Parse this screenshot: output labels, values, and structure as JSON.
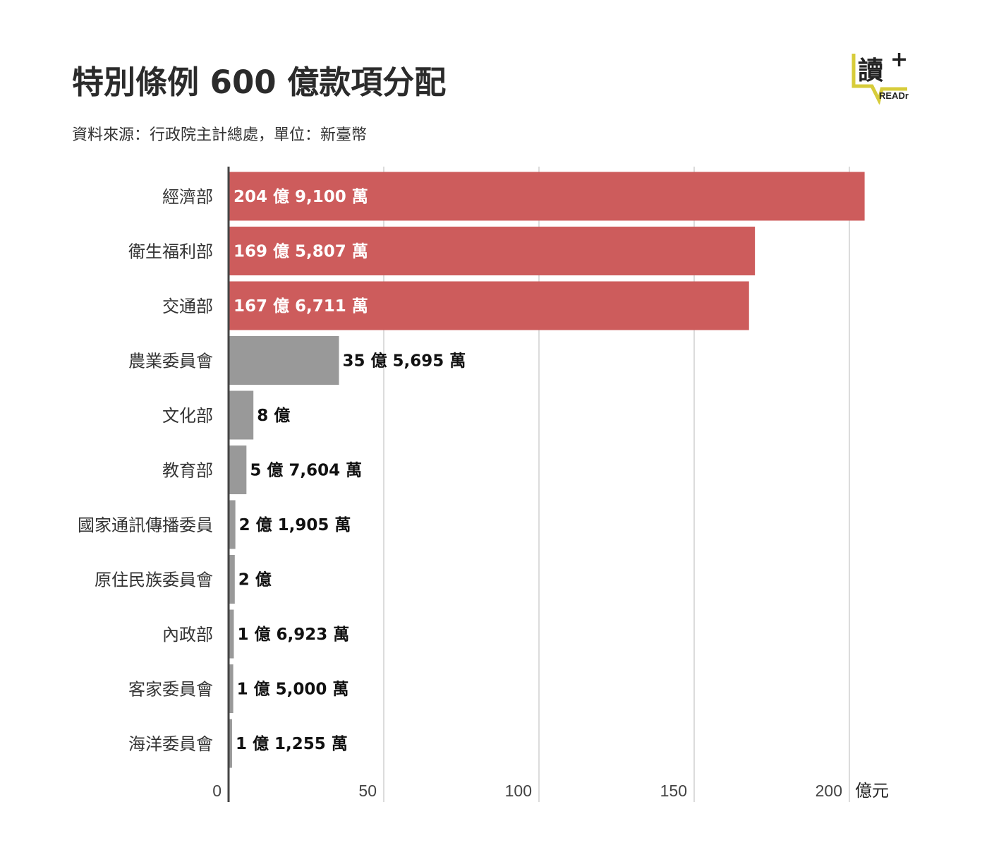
{
  "header": {
    "title": "特別條例 600 億款項分配",
    "subtitle": "資料來源：行政院主計總處，單位：新臺幣",
    "logo_text": "READr",
    "logo_glyph": "讀",
    "logo_plus": "+"
  },
  "colors": {
    "highlight": "#cd5c5c",
    "normal": "#999999",
    "grid": "#d0d0d0",
    "axis": "#444444"
  },
  "chart_data": {
    "type": "bar",
    "orientation": "horizontal",
    "title": "特別條例 600 億款項分配",
    "subtitle": "資料來源：行政院主計總處，單位：新臺幣",
    "unit_label": "億元",
    "xlim": [
      0,
      205
    ],
    "xticks": [
      0,
      50,
      100,
      150,
      200
    ],
    "grid": true,
    "categories": [
      "經濟部",
      "衛生福利部",
      "交通部",
      "農業委員會",
      "文化部",
      "教育部",
      "國家通訊傳播委員",
      "原住民族委員會",
      "內政部",
      "客家委員會",
      "海洋委員會"
    ],
    "values": [
      204.91,
      169.5807,
      167.6711,
      35.5695,
      8,
      5.7604,
      2.1905,
      2,
      1.6923,
      1.5,
      1.1255
    ],
    "labels": [
      "204 億 9,100 萬",
      "169 億 5,807 萬",
      "167 億 6,711 萬",
      "35 億 5,695 萬",
      "8 億",
      "5 億 7,604 萬",
      "2 億 1,905 萬",
      "2 億",
      "1 億 6,923 萬",
      "1 億 5,000 萬",
      "1 億 1,255 萬"
    ],
    "highlighted": [
      true,
      true,
      true,
      false,
      false,
      false,
      false,
      false,
      false,
      false,
      false
    ]
  }
}
